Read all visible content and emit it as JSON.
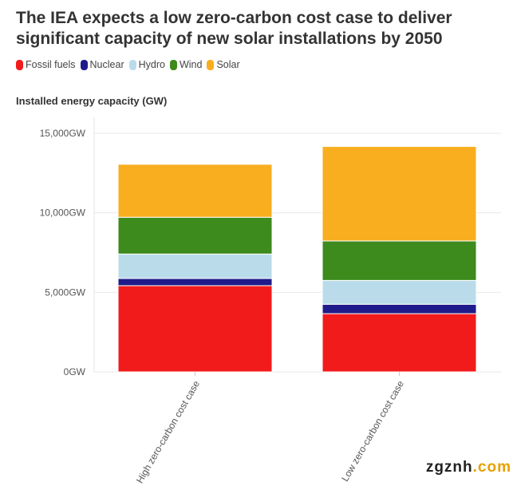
{
  "title": "The IEA expects a low zero-carbon cost case to deliver significant capacity of new solar installations by 2050",
  "watermark": {
    "prefix": "zgznh",
    "suffix": ".com"
  },
  "chart_data": {
    "type": "bar",
    "stacked": true,
    "title": "The IEA expects a low zero-carbon cost case to deliver significant capacity of new solar installations by 2050",
    "ylabel": "Installed energy capacity (GW)",
    "xlabel": "",
    "categories": [
      "High zero-carbon cost case",
      "Low zero-carbon cost case"
    ],
    "series": [
      {
        "name": "Fossil fuels",
        "color": "#f21b1b",
        "values": [
          5420,
          3660
        ]
      },
      {
        "name": "Nuclear",
        "color": "#1f1b8a",
        "values": [
          450,
          590
        ]
      },
      {
        "name": "Hydro",
        "color": "#badcea",
        "values": [
          1540,
          1500
        ]
      },
      {
        "name": "Wind",
        "color": "#3d8a1d",
        "values": [
          2310,
          2480
        ]
      },
      {
        "name": "Solar",
        "color": "#f8ae1e",
        "values": [
          3330,
          5940
        ]
      }
    ],
    "ylim": [
      0,
      15000
    ],
    "yticks": [
      0,
      5000,
      10000,
      15000
    ],
    "ytick_labels": [
      "0GW",
      "5,000GW",
      "10,000GW",
      "15,000GW"
    ],
    "grid": true,
    "legend_position": "top-left"
  }
}
